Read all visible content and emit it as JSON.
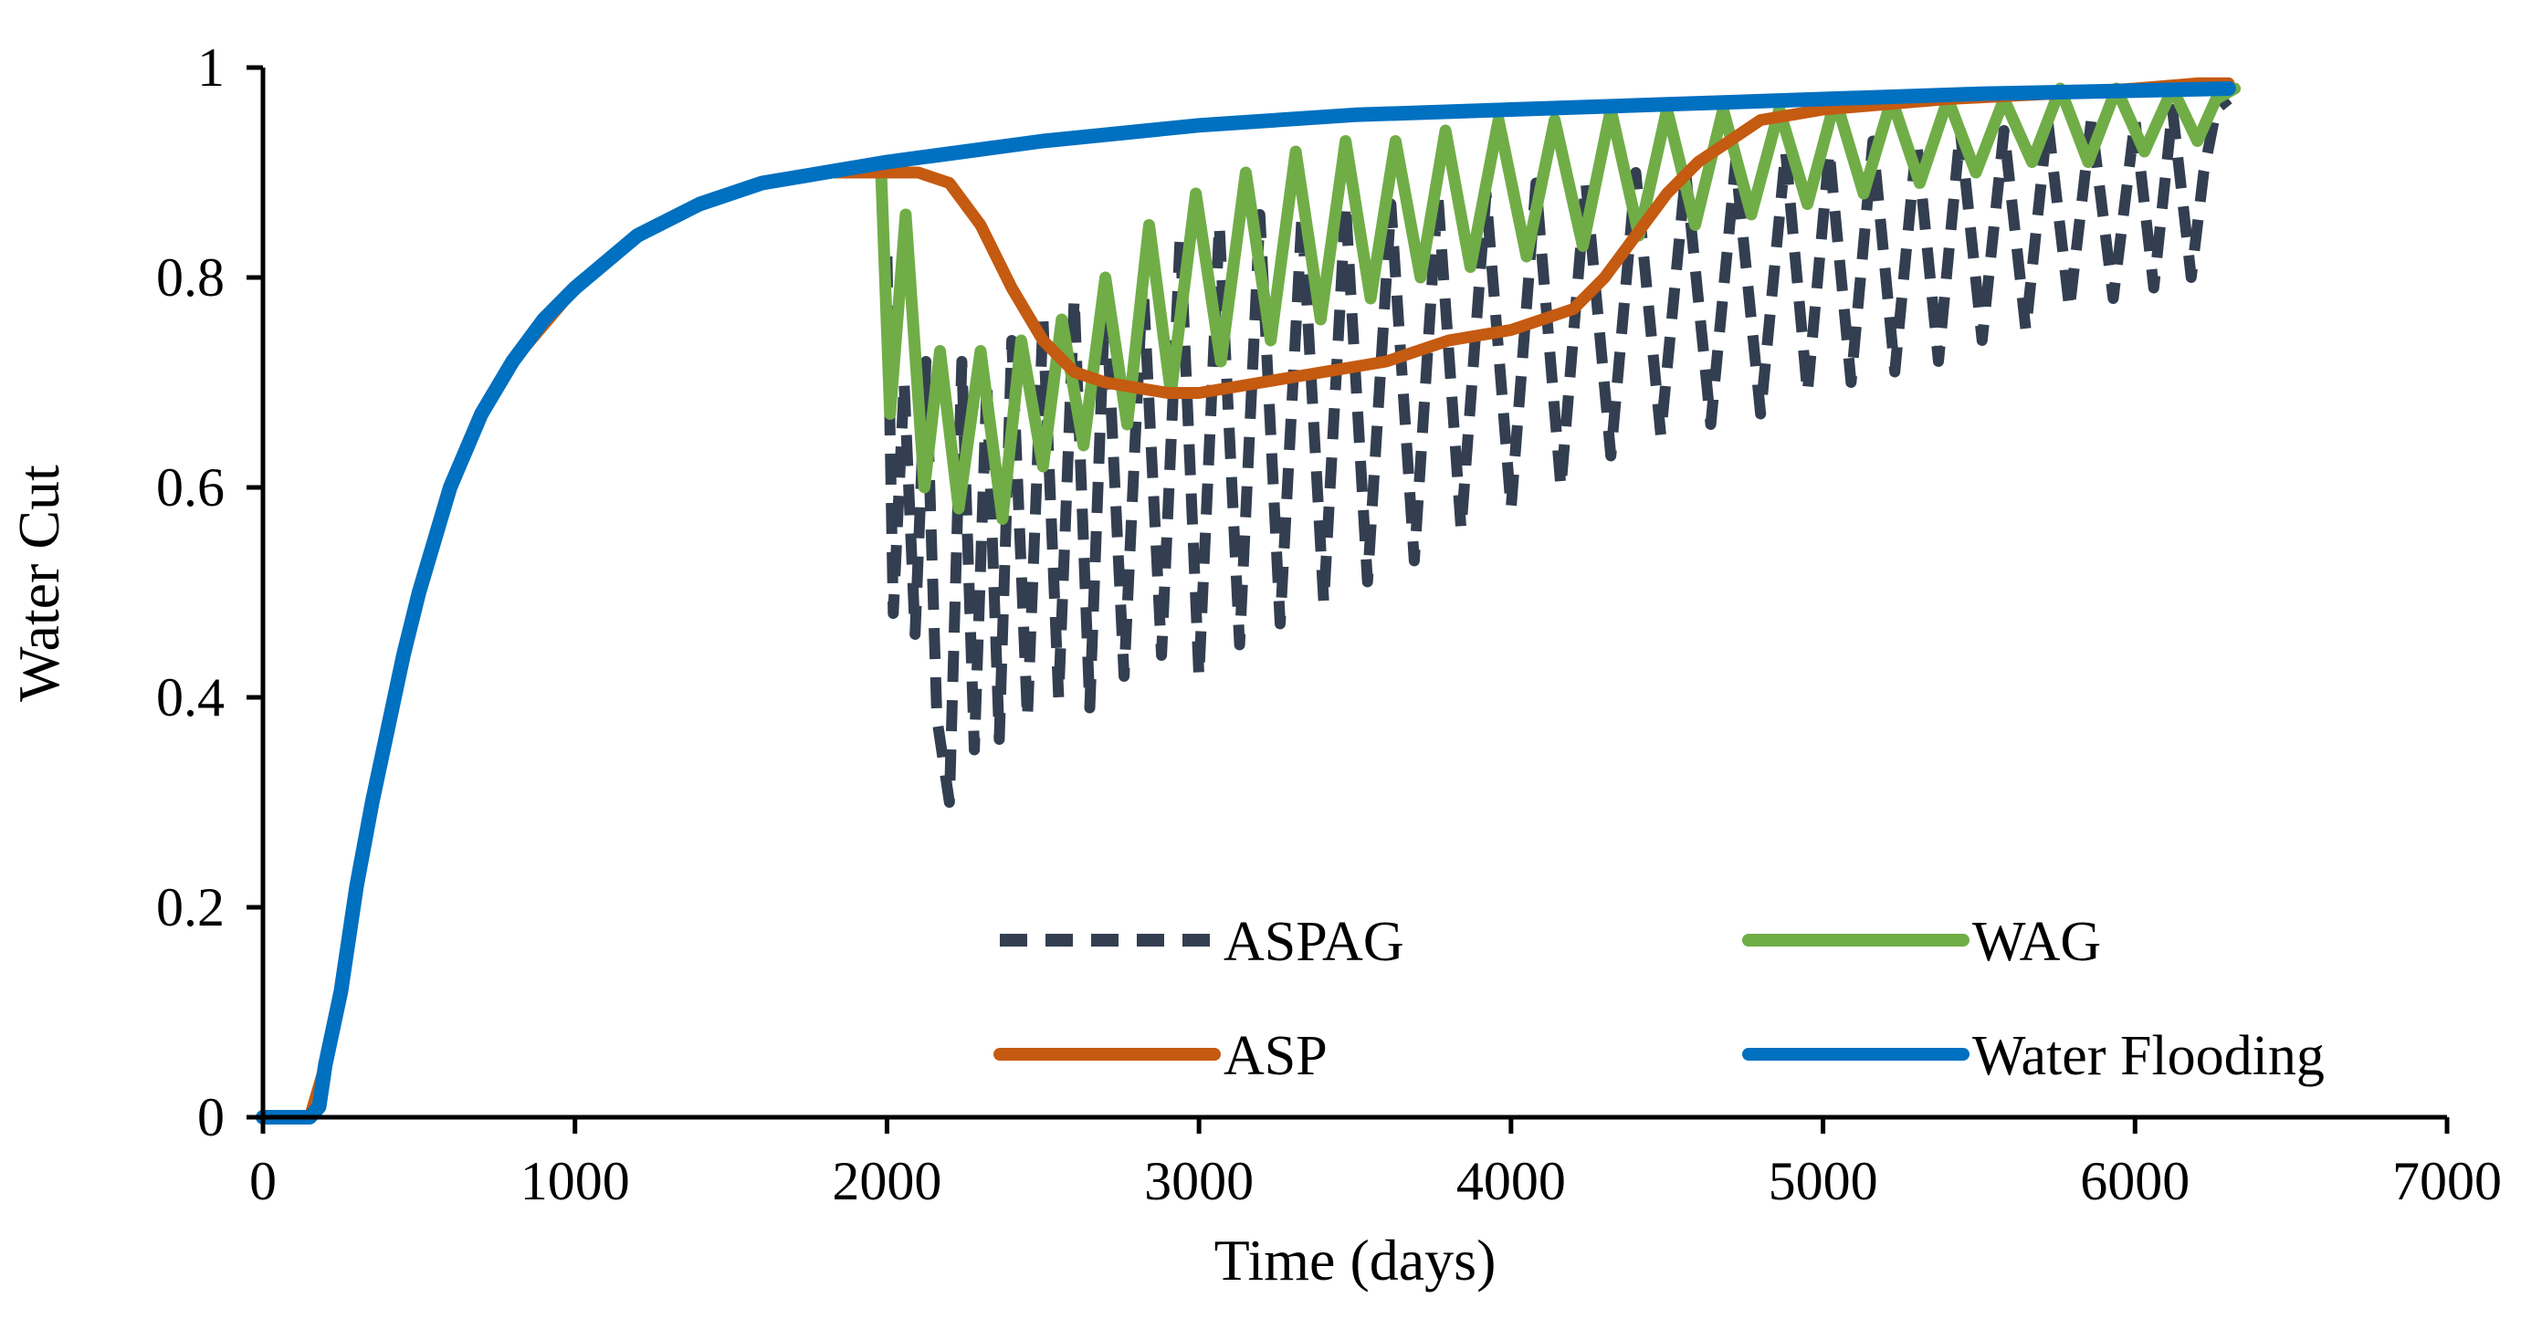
{
  "chart_data": {
    "type": "line",
    "xlabel": "Time (days)",
    "ylabel": "Water Cut",
    "xlim": [
      0,
      7000
    ],
    "ylim": [
      0,
      1
    ],
    "x_ticks": [
      0,
      1000,
      2000,
      3000,
      4000,
      5000,
      6000,
      7000
    ],
    "y_ticks": [
      0,
      0.2,
      0.4,
      0.6,
      0.8,
      1
    ],
    "y_tick_labels": [
      "0",
      "0.2",
      "0.4",
      "0.6",
      "0.8",
      "1"
    ],
    "grid": false,
    "legend_position": "bottom-center",
    "series": [
      {
        "name": "ASPAG",
        "color": "#333f50",
        "dash": "dashed",
        "x": [
          2000,
          2020,
          2055,
          2090,
          2125,
          2160,
          2200,
          2240,
          2280,
          2320,
          2360,
          2400,
          2450,
          2500,
          2550,
          2600,
          2650,
          2700,
          2760,
          2820,
          2880,
          2940,
          3000,
          3065,
          3130,
          3195,
          3260,
          3330,
          3400,
          3470,
          3540,
          3615,
          3690,
          3765,
          3840,
          3920,
          4000,
          4080,
          4160,
          4240,
          4320,
          4400,
          4480,
          4560,
          4640,
          4720,
          4800,
          4880,
          4950,
          5020,
          5090,
          5160,
          5230,
          5300,
          5370,
          5440,
          5510,
          5580,
          5650,
          5720,
          5790,
          5860,
          5930,
          6000,
          6060,
          6120,
          6180,
          6220,
          6260,
          6300
        ],
        "values": [
          0.82,
          0.48,
          0.7,
          0.46,
          0.72,
          0.38,
          0.3,
          0.72,
          0.35,
          0.7,
          0.36,
          0.74,
          0.38,
          0.76,
          0.4,
          0.78,
          0.39,
          0.79,
          0.42,
          0.8,
          0.44,
          0.84,
          0.42,
          0.85,
          0.45,
          0.86,
          0.47,
          0.86,
          0.49,
          0.87,
          0.51,
          0.87,
          0.53,
          0.88,
          0.56,
          0.88,
          0.58,
          0.89,
          0.6,
          0.89,
          0.63,
          0.9,
          0.65,
          0.9,
          0.66,
          0.91,
          0.67,
          0.92,
          0.69,
          0.92,
          0.7,
          0.93,
          0.71,
          0.93,
          0.72,
          0.94,
          0.74,
          0.94,
          0.75,
          0.95,
          0.77,
          0.95,
          0.78,
          0.95,
          0.79,
          0.96,
          0.8,
          0.9,
          0.96,
          0.97
        ]
      },
      {
        "name": "WAG",
        "color": "#70ad47",
        "dash": "solid",
        "x": [
          0,
          150,
          200,
          250,
          300,
          350,
          400,
          450,
          500,
          600,
          700,
          800,
          1000,
          1200,
          1400,
          1600,
          1800,
          1980,
          2010,
          2060,
          2120,
          2170,
          2230,
          2300,
          2370,
          2430,
          2500,
          2560,
          2630,
          2700,
          2770,
          2840,
          2910,
          2990,
          3070,
          3150,
          3230,
          3310,
          3390,
          3470,
          3550,
          3630,
          3710,
          3790,
          3870,
          3960,
          4050,
          4140,
          4230,
          4320,
          4410,
          4500,
          4590,
          4680,
          4770,
          4860,
          4950,
          5040,
          5130,
          5220,
          5310,
          5400,
          5490,
          5580,
          5670,
          5760,
          5850,
          5940,
          6030,
          6120,
          6200,
          6260,
          6320
        ],
        "values": [
          0,
          0,
          0.05,
          0.12,
          0.22,
          0.3,
          0.37,
          0.44,
          0.5,
          0.6,
          0.67,
          0.72,
          0.79,
          0.84,
          0.87,
          0.89,
          0.9,
          0.91,
          0.67,
          0.86,
          0.6,
          0.73,
          0.58,
          0.73,
          0.57,
          0.74,
          0.62,
          0.76,
          0.64,
          0.8,
          0.66,
          0.85,
          0.69,
          0.88,
          0.72,
          0.9,
          0.74,
          0.92,
          0.76,
          0.93,
          0.78,
          0.93,
          0.8,
          0.94,
          0.81,
          0.95,
          0.82,
          0.95,
          0.83,
          0.96,
          0.84,
          0.96,
          0.85,
          0.96,
          0.86,
          0.96,
          0.87,
          0.97,
          0.88,
          0.97,
          0.89,
          0.97,
          0.9,
          0.97,
          0.91,
          0.98,
          0.91,
          0.98,
          0.92,
          0.98,
          0.93,
          0.97,
          0.98
        ]
      },
      {
        "name": "ASP",
        "color": "#c55a11",
        "dash": "solid",
        "x": [
          0,
          150,
          200,
          250,
          300,
          350,
          400,
          450,
          500,
          600,
          700,
          800,
          1000,
          1200,
          1400,
          1600,
          1800,
          2000,
          2100,
          2200,
          2300,
          2400,
          2500,
          2600,
          2700,
          2800,
          2900,
          3000,
          3200,
          3400,
          3600,
          3800,
          4000,
          4200,
          4300,
          4400,
          4500,
          4600,
          4700,
          4800,
          4900,
          5000,
          5200,
          5400,
          5600,
          5800,
          6000,
          6200,
          6300
        ],
        "values": [
          0,
          0,
          0.05,
          0.12,
          0.22,
          0.3,
          0.37,
          0.44,
          0.5,
          0.6,
          0.67,
          0.72,
          0.79,
          0.84,
          0.87,
          0.89,
          0.9,
          0.9,
          0.9,
          0.89,
          0.85,
          0.79,
          0.74,
          0.71,
          0.7,
          0.695,
          0.69,
          0.69,
          0.7,
          0.71,
          0.72,
          0.74,
          0.75,
          0.77,
          0.8,
          0.84,
          0.88,
          0.91,
          0.93,
          0.95,
          0.955,
          0.96,
          0.965,
          0.97,
          0.973,
          0.976,
          0.98,
          0.985,
          0.985
        ]
      },
      {
        "name": "Water Flooding",
        "color": "#0070c0",
        "dash": "solid",
        "x": [
          0,
          150,
          180,
          200,
          250,
          300,
          350,
          400,
          450,
          500,
          600,
          700,
          800,
          900,
          1000,
          1200,
          1400,
          1600,
          1800,
          2000,
          2500,
          3000,
          3500,
          4000,
          4500,
          5000,
          5500,
          6000,
          6300
        ],
        "values": [
          0,
          0,
          0.01,
          0.05,
          0.12,
          0.22,
          0.3,
          0.37,
          0.44,
          0.5,
          0.6,
          0.67,
          0.72,
          0.76,
          0.79,
          0.84,
          0.87,
          0.89,
          0.9,
          0.91,
          0.93,
          0.945,
          0.955,
          0.96,
          0.965,
          0.97,
          0.975,
          0.978,
          0.98
        ]
      }
    ]
  }
}
